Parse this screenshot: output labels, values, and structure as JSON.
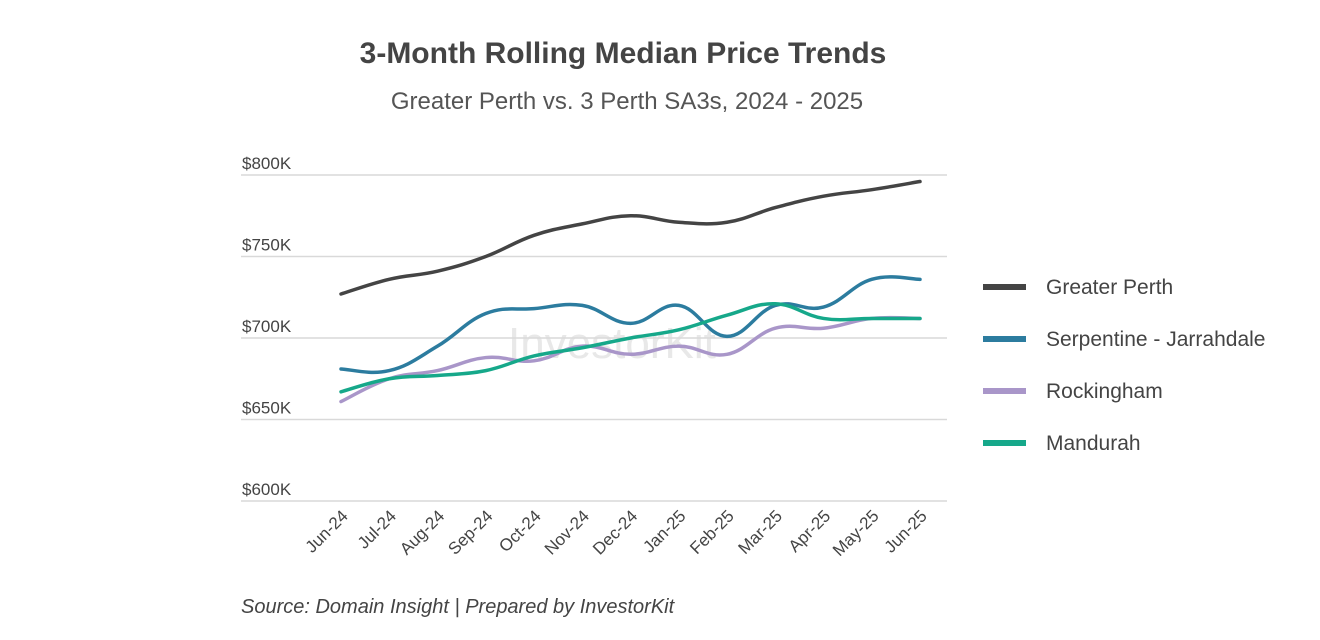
{
  "chart_data": {
    "type": "line",
    "title": "3-Month Rolling Median Price Trends",
    "subtitle": "Greater Perth vs. 3 Perth SA3s, 2024 - 2025",
    "xlabel": "",
    "ylabel": "",
    "categories": [
      "Jun-24",
      "Jul-24",
      "Aug-24",
      "Sep-24",
      "Oct-24",
      "Nov-24",
      "Dec-24",
      "Jan-25",
      "Feb-25",
      "Mar-25",
      "Apr-25",
      "May-25",
      "Jun-25"
    ],
    "ylim": [
      600,
      800
    ],
    "yticks": [
      {
        "value": 600,
        "label": "$600K"
      },
      {
        "value": 650,
        "label": "$650K"
      },
      {
        "value": 700,
        "label": "$700K"
      },
      {
        "value": 750,
        "label": "$750K"
      },
      {
        "value": 800,
        "label": "$800K"
      }
    ],
    "grid": true,
    "legend_position": "right",
    "series": [
      {
        "name": "Greater Perth",
        "color": "#444444",
        "values": [
          727,
          736,
          741,
          750,
          763,
          770,
          775,
          771,
          771,
          780,
          787,
          791,
          796
        ]
      },
      {
        "name": "Serpentine - Jarrahdale",
        "color": "#2c7c9f",
        "values": [
          681,
          680,
          695,
          715,
          718,
          720,
          709,
          720,
          701,
          720,
          719,
          736,
          736
        ]
      },
      {
        "name": "Rockingham",
        "color": "#a996c9",
        "values": [
          661,
          675,
          680,
          688,
          686,
          695,
          690,
          695,
          690,
          706,
          706,
          712,
          712
        ]
      },
      {
        "name": "Mandurah",
        "color": "#16a88a",
        "values": [
          667,
          675,
          677,
          680,
          689,
          694,
          700,
          705,
          714,
          721,
          712,
          712,
          712
        ]
      }
    ],
    "source": "Source: Domain Insight | Prepared by InvestorKit",
    "watermark": "InvestorKit"
  }
}
